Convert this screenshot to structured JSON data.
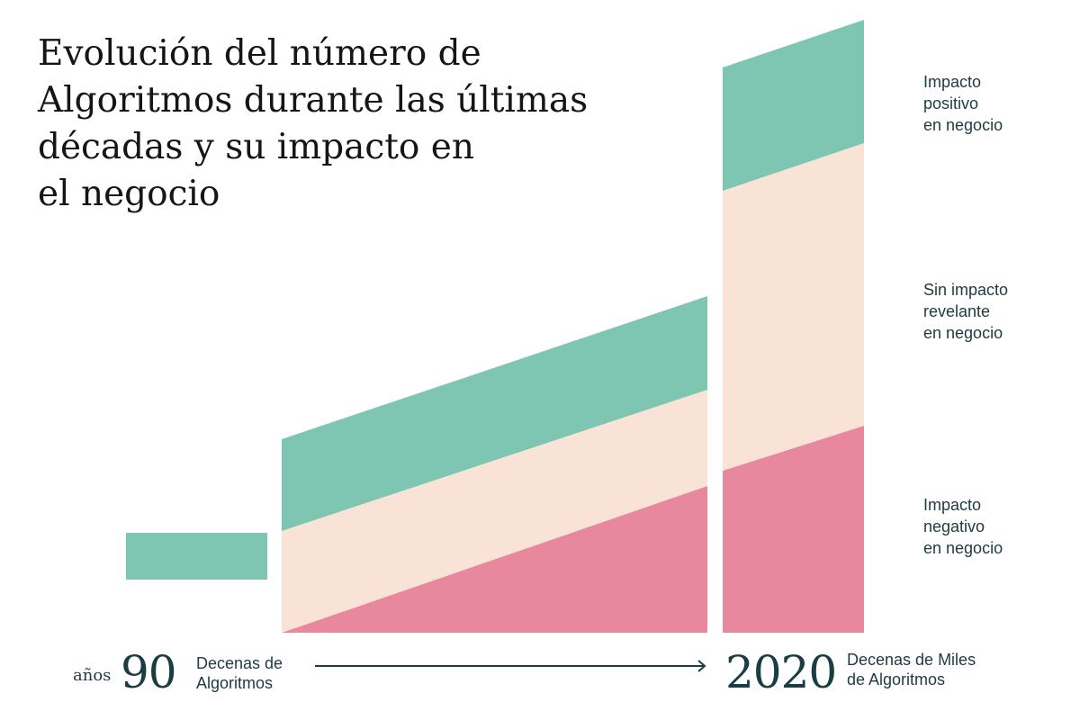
{
  "title_lines": [
    "Evolución del número de",
    "Algoritmos durante las últimas",
    "décadas y su impacto en",
    "el negocio"
  ],
  "colors": {
    "positive": "#7ec6b2",
    "neutral": "#f9e3d6",
    "negative": "#e8889e",
    "text_dark": "#1f3a40",
    "arrow": "#1a3d44"
  },
  "legend": {
    "positive": [
      "Impacto",
      "positivo",
      "en negocio"
    ],
    "neutral": [
      "Sin impacto",
      "revelante",
      "en negocio"
    ],
    "negative": [
      "Impacto",
      "negativo",
      "en negocio"
    ]
  },
  "axis": {
    "prefix": "años",
    "start_year": "90",
    "start_desc": [
      "Decenas de",
      "Algoritmos"
    ],
    "end_year": "2020",
    "end_desc": [
      "Decenas de Miles",
      "de Algoritmos"
    ],
    "arrow_icon": "right-arrow-icon"
  },
  "chart_data": {
    "type": "area",
    "stacked": true,
    "ylabel": "",
    "xlabel": "",
    "stack_order": [
      "negative",
      "neutral",
      "positive"
    ],
    "segments": [
      {
        "x": [
          0,
          1
        ],
        "series": [
          {
            "name": "negative",
            "start": [
              0,
              0
            ],
            "end": [
              0,
              0
            ]
          },
          {
            "name": "neutral",
            "start": [
              0,
              0
            ],
            "end": [
              0,
              0
            ]
          },
          {
            "name": "positive",
            "start": [
              59,
              111
            ],
            "end": [
              59,
              111
            ]
          }
        ]
      },
      {
        "x": [
          1,
          2
        ],
        "series": [
          {
            "name": "negative",
            "start": [
              0,
              0
            ],
            "end": [
              0,
              163
            ]
          },
          {
            "name": "neutral",
            "start": [
              0,
              113
            ],
            "end": [
              163,
              270
            ]
          },
          {
            "name": "positive",
            "start": [
              113,
              215
            ],
            "end": [
              270,
              374
            ]
          }
        ]
      },
      {
        "x": [
          2,
          3
        ],
        "series": [
          {
            "name": "negative",
            "start": [
              0,
              180
            ],
            "end": [
              0,
              230
            ]
          },
          {
            "name": "neutral",
            "start": [
              180,
              491
            ],
            "end": [
              230,
              544
            ]
          },
          {
            "name": "positive",
            "start": [
              491,
              628
            ],
            "end": [
              544,
              681
            ]
          }
        ]
      }
    ],
    "ylim": [
      0,
      681
    ]
  }
}
